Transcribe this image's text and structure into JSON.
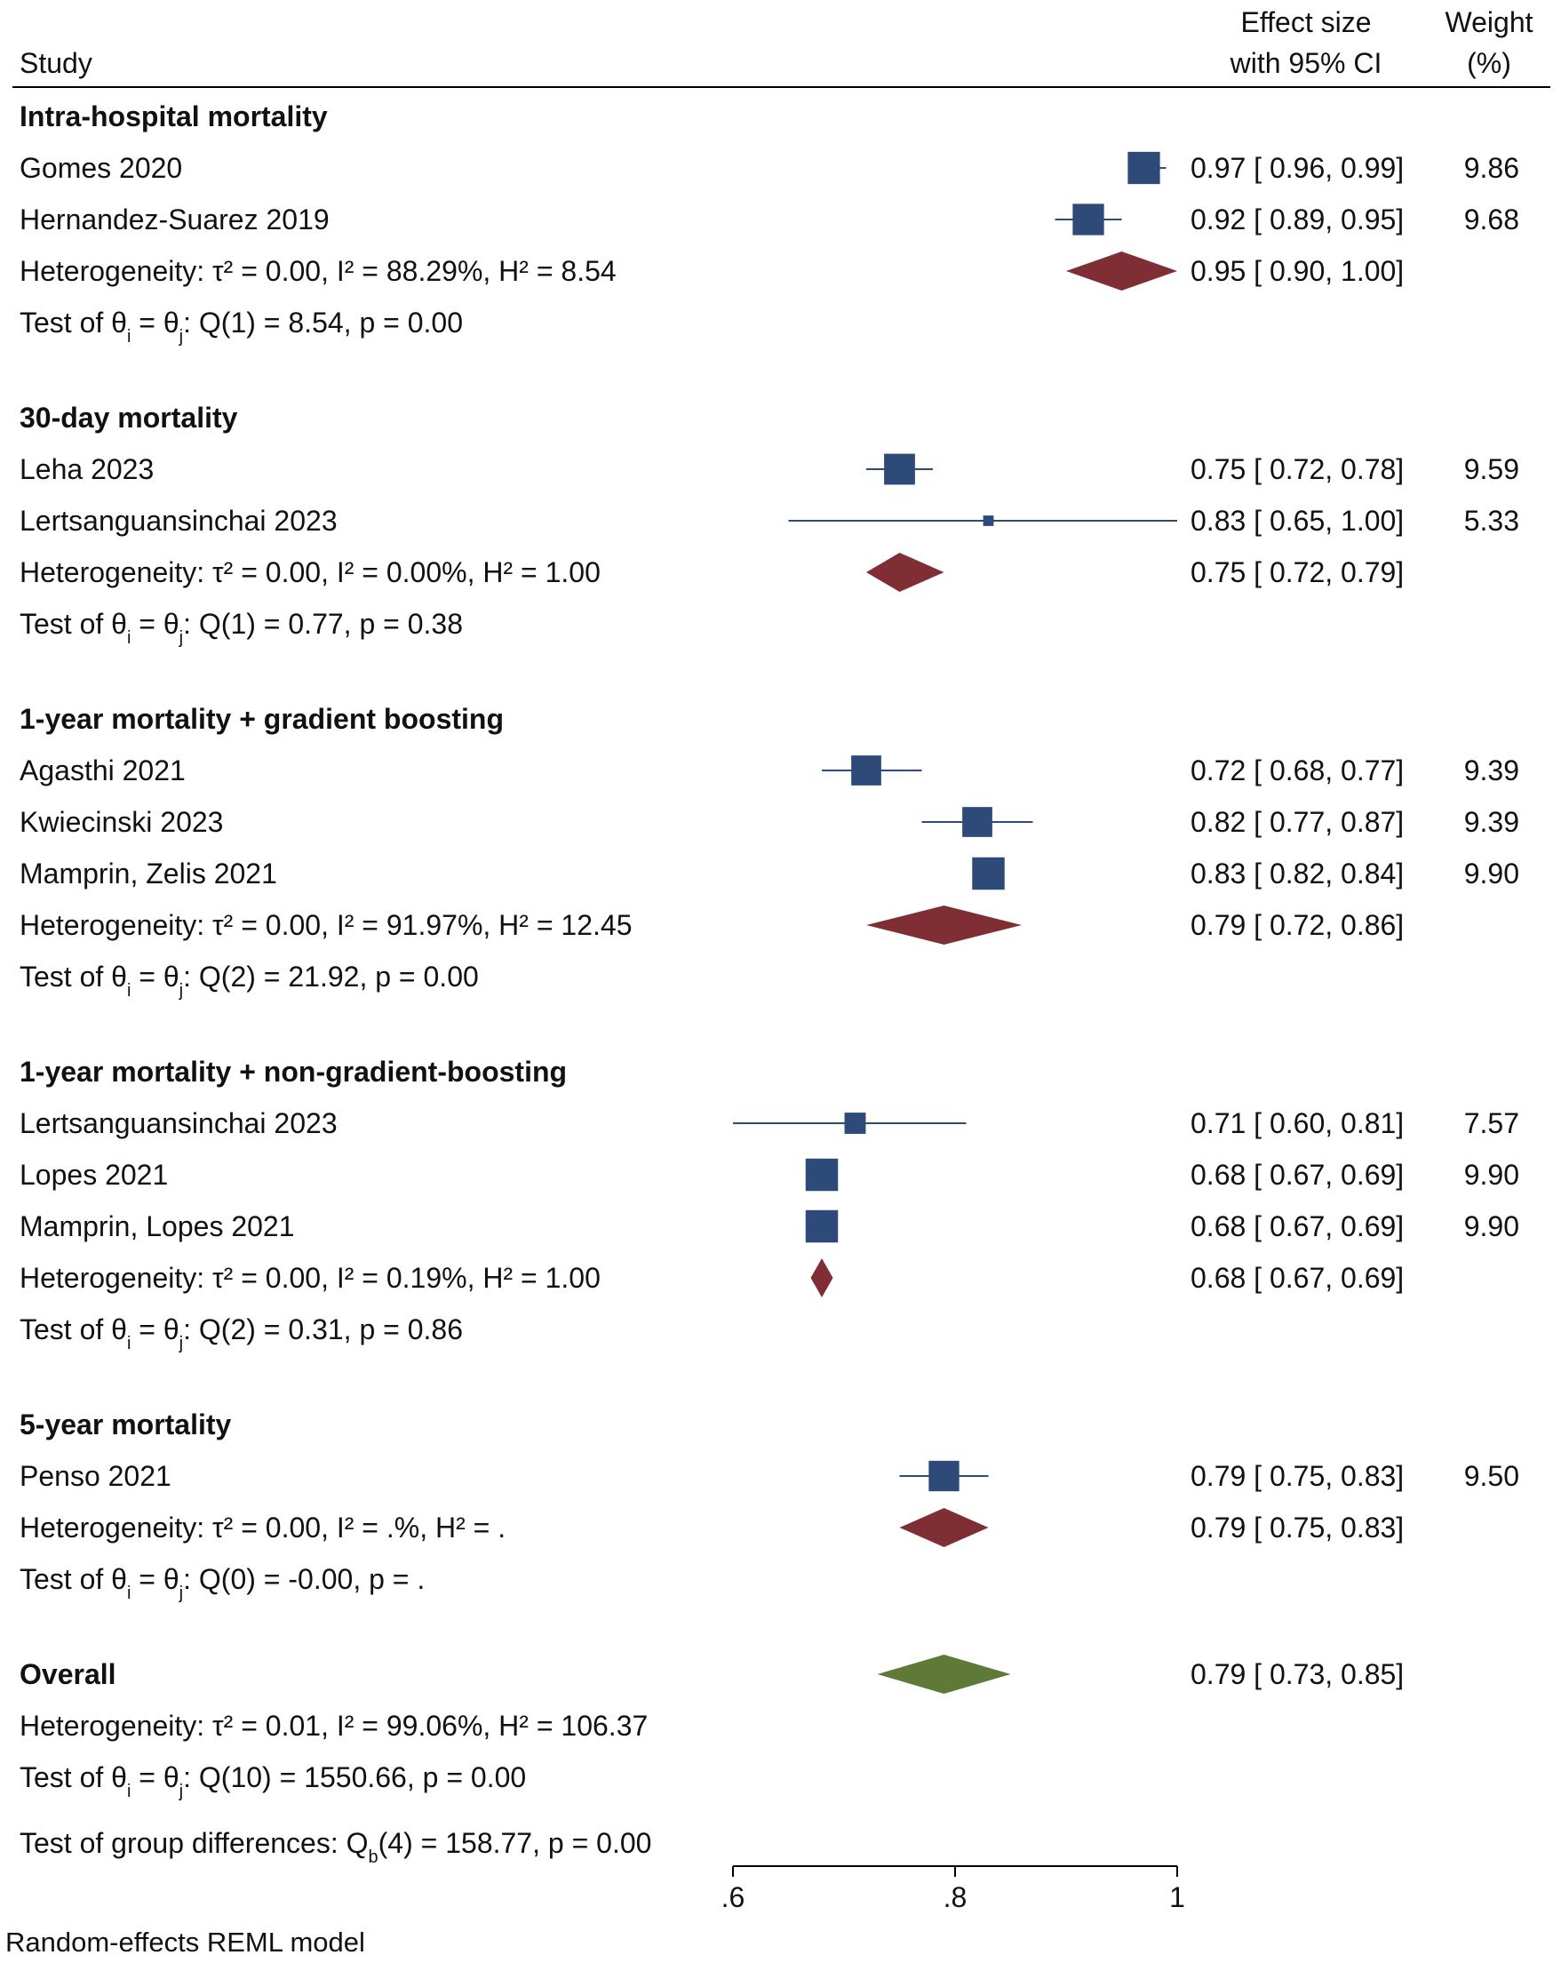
{
  "chart_data": {
    "type": "forest",
    "headers": {
      "study": "Study",
      "effect_line1": "Effect size",
      "effect_line2": "with 95% CI",
      "weight_line1": "Weight",
      "weight_line2": "(%)"
    },
    "x_axis": {
      "range": [
        0.6,
        1.0
      ],
      "ticks": [
        0.6,
        0.8,
        1.0
      ],
      "tick_labels": [
        ".6",
        ".8",
        "1"
      ]
    },
    "colors": {
      "study": "#2e4a78",
      "subgroup": "#7f2f34",
      "overall": "#5f7a38",
      "text": "#111111"
    },
    "groups": [
      {
        "name": "Intra-hospital mortality",
        "studies": [
          {
            "label": "Gomes 2020",
            "es": 0.97,
            "lo": 0.96,
            "hi": 0.99,
            "ci_text": "0.97 [ 0.96,  0.99]",
            "weight": "9.86"
          },
          {
            "label": "Hernandez-Suarez 2019",
            "es": 0.92,
            "lo": 0.89,
            "hi": 0.95,
            "ci_text": "0.92 [ 0.89,  0.95]",
            "weight": "9.68"
          }
        ],
        "summary": {
          "es": 0.95,
          "lo": 0.9,
          "hi": 1.0,
          "ci_text": "0.95 [ 0.90,  1.00]"
        },
        "heterogeneity": "Heterogeneity: τ² = 0.00, I² = 88.29%, H² = 8.54",
        "test": "Test of θi = θj: Q(1) = 8.54, p = 0.00"
      },
      {
        "name": "30-day mortality",
        "studies": [
          {
            "label": "Leha 2023",
            "es": 0.75,
            "lo": 0.72,
            "hi": 0.78,
            "ci_text": "0.75 [ 0.72,  0.78]",
            "weight": "9.59"
          },
          {
            "label": "Lertsanguansinchai 2023",
            "es": 0.83,
            "lo": 0.65,
            "hi": 1.0,
            "ci_text": "0.83 [ 0.65,  1.00]",
            "weight": "5.33"
          }
        ],
        "summary": {
          "es": 0.75,
          "lo": 0.72,
          "hi": 0.79,
          "ci_text": "0.75 [ 0.72,  0.79]"
        },
        "heterogeneity": "Heterogeneity: τ² = 0.00, I² = 0.00%, H² = 1.00",
        "test": "Test of θi = θj: Q(1) = 0.77, p = 0.38"
      },
      {
        "name": "1-year mortality + gradient boosting",
        "studies": [
          {
            "label": "Agasthi 2021",
            "es": 0.72,
            "lo": 0.68,
            "hi": 0.77,
            "ci_text": "0.72 [ 0.68,  0.77]",
            "weight": "9.39"
          },
          {
            "label": "Kwiecinski 2023",
            "es": 0.82,
            "lo": 0.77,
            "hi": 0.87,
            "ci_text": "0.82 [ 0.77,  0.87]",
            "weight": "9.39"
          },
          {
            "label": "Mamprin, Zelis 2021",
            "es": 0.83,
            "lo": 0.82,
            "hi": 0.84,
            "ci_text": "0.83 [ 0.82,  0.84]",
            "weight": "9.90"
          }
        ],
        "summary": {
          "es": 0.79,
          "lo": 0.72,
          "hi": 0.86,
          "ci_text": "0.79 [ 0.72,  0.86]"
        },
        "heterogeneity": "Heterogeneity: τ² = 0.00, I² = 91.97%, H² = 12.45",
        "test": "Test of θi = θj: Q(2) = 21.92, p = 0.00"
      },
      {
        "name": "1-year mortality + non-gradient-boosting",
        "studies": [
          {
            "label": "Lertsanguansinchai 2023",
            "es": 0.71,
            "lo": 0.6,
            "hi": 0.81,
            "ci_text": "0.71 [ 0.60,  0.81]",
            "weight": "7.57"
          },
          {
            "label": "Lopes 2021",
            "es": 0.68,
            "lo": 0.67,
            "hi": 0.69,
            "ci_text": "0.68 [ 0.67,  0.69]",
            "weight": "9.90"
          },
          {
            "label": "Mamprin, Lopes 2021",
            "es": 0.68,
            "lo": 0.67,
            "hi": 0.69,
            "ci_text": "0.68 [ 0.67,  0.69]",
            "weight": "9.90"
          }
        ],
        "summary": {
          "es": 0.68,
          "lo": 0.67,
          "hi": 0.69,
          "ci_text": "0.68 [ 0.67,  0.69]"
        },
        "heterogeneity": "Heterogeneity: τ² = 0.00, I² = 0.19%, H² = 1.00",
        "test": "Test of θi = θj: Q(2) = 0.31, p = 0.86"
      },
      {
        "name": "5-year mortality",
        "studies": [
          {
            "label": "Penso 2021",
            "es": 0.79,
            "lo": 0.75,
            "hi": 0.83,
            "ci_text": "0.79 [ 0.75,  0.83]",
            "weight": "9.50"
          }
        ],
        "summary": {
          "es": 0.79,
          "lo": 0.75,
          "hi": 0.83,
          "ci_text": "0.79 [ 0.75,  0.83]"
        },
        "heterogeneity": "Heterogeneity: τ² = 0.00, I² = .%, H² = .",
        "test": "Test of θi = θj: Q(0) = -0.00, p = ."
      }
    ],
    "overall": {
      "label": "Overall",
      "es": 0.79,
      "lo": 0.73,
      "hi": 0.85,
      "ci_text": "0.79 [ 0.73,  0.85]",
      "heterogeneity": "Heterogeneity: τ² = 0.01, I² = 99.06%, H² = 106.37",
      "test": "Test of θi = θj: Q(10) = 1550.66, p = 0.00"
    },
    "group_differences": "Test of group differences: Qb(4) = 158.77, p = 0.00",
    "footnote": "Random-effects REML model"
  }
}
